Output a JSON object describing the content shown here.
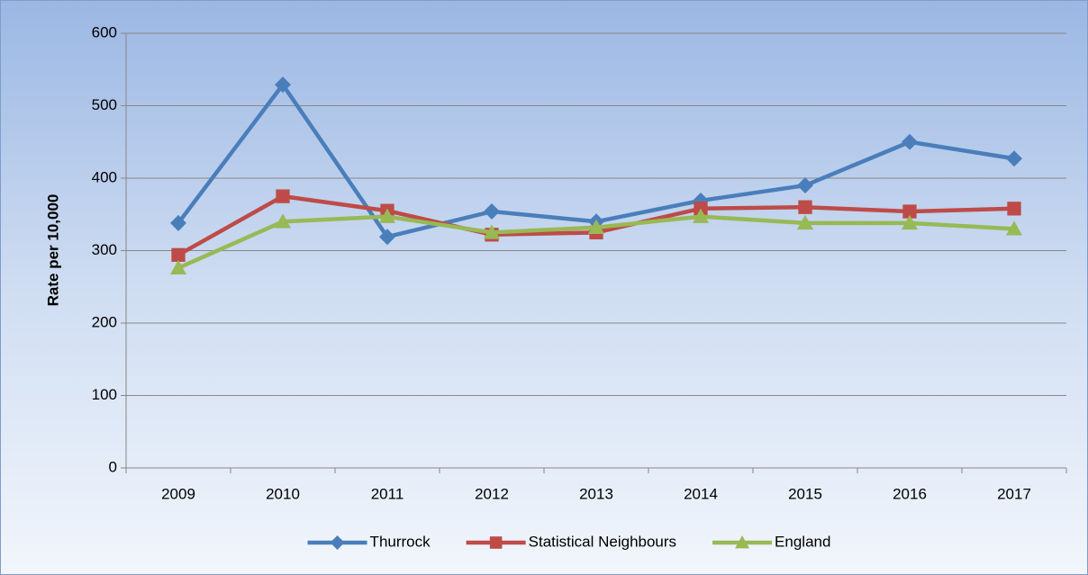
{
  "chart_data": {
    "type": "line",
    "y_label": "Rate per 10,000",
    "categories": [
      "2009",
      "2010",
      "2011",
      "2012",
      "2013",
      "2014",
      "2015",
      "2016",
      "2017"
    ],
    "series": [
      {
        "name": "Thurrock",
        "color": "#4a7ebb",
        "marker": "diamond",
        "values": [
          338,
          529,
          319,
          354,
          340,
          369,
          390,
          450,
          427
        ]
      },
      {
        "name": "Statistical Neighbours",
        "color": "#be4b48",
        "marker": "square",
        "values": [
          294,
          375,
          355,
          322,
          325,
          358,
          360,
          354,
          358
        ]
      },
      {
        "name": "England",
        "color": "#98b954",
        "marker": "triangle",
        "values": [
          276,
          340,
          347,
          325,
          332,
          347,
          338,
          338,
          330
        ]
      }
    ],
    "ylim": [
      0,
      600
    ],
    "yticks": [
      0,
      100,
      200,
      300,
      400,
      500,
      600
    ],
    "grid": true,
    "legend": "bottom"
  }
}
